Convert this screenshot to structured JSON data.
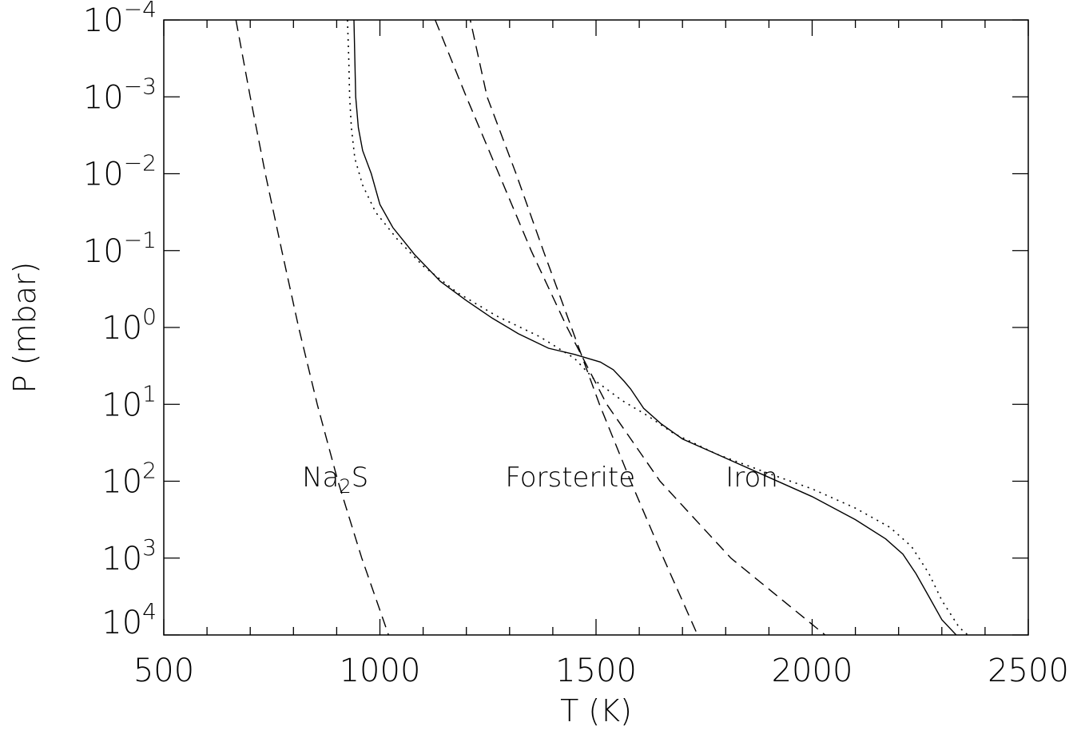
{
  "chart_data": {
    "type": "line",
    "xlabel": "T (K)",
    "ylabel": "P (mbar)",
    "xlim": [
      500,
      2500
    ],
    "ylim_log10": [
      -4,
      4
    ],
    "y_scale": "log",
    "y_inverted": true,
    "grid": false,
    "x_ticks": [
      {
        "value": 500,
        "label": "500"
      },
      {
        "value": 1000,
        "label": "1000"
      },
      {
        "value": 1500,
        "label": "1500"
      },
      {
        "value": 2000,
        "label": "2000"
      },
      {
        "value": 2500,
        "label": "2500"
      }
    ],
    "y_ticks": [
      {
        "exp": -4,
        "base": "10",
        "sup": "−4"
      },
      {
        "exp": -3,
        "base": "10",
        "sup": "−3"
      },
      {
        "exp": -2,
        "base": "10",
        "sup": "−2"
      },
      {
        "exp": -1,
        "base": "10",
        "sup": "−1"
      },
      {
        "exp": 0,
        "base": "10",
        "sup": "0"
      },
      {
        "exp": 1,
        "base": "10",
        "sup": "1"
      },
      {
        "exp": 2,
        "base": "10",
        "sup": "2"
      },
      {
        "exp": 3,
        "base": "10",
        "sup": "3"
      },
      {
        "exp": 4,
        "base": "10",
        "sup": "4"
      }
    ],
    "annotations": [
      {
        "id": "na2s",
        "base": "Na",
        "sub": "2",
        "tail": "S",
        "x": 820,
        "logP": 1.9
      },
      {
        "id": "forsterite",
        "text": "Forsterite",
        "x": 1290,
        "logP": 1.9
      },
      {
        "id": "iron",
        "text": "Iron",
        "x": 1800,
        "logP": 1.9
      }
    ],
    "series": [
      {
        "style": "solid",
        "points": [
          [
            940,
            -4
          ],
          [
            942,
            -3.5
          ],
          [
            944,
            -3
          ],
          [
            950,
            -2.6
          ],
          [
            960,
            -2.3
          ],
          [
            980,
            -2
          ],
          [
            1000,
            -1.6
          ],
          [
            1030,
            -1.3
          ],
          [
            1080,
            -0.95
          ],
          [
            1140,
            -0.6
          ],
          [
            1200,
            -0.35
          ],
          [
            1260,
            -0.12
          ],
          [
            1320,
            0.08
          ],
          [
            1390,
            0.27
          ],
          [
            1450,
            0.35
          ],
          [
            1510,
            0.45
          ],
          [
            1540,
            0.55
          ],
          [
            1565,
            0.7
          ],
          [
            1580,
            0.8
          ],
          [
            1610,
            1.05
          ],
          [
            1650,
            1.25
          ],
          [
            1700,
            1.45
          ],
          [
            1800,
            1.7
          ],
          [
            1900,
            1.95
          ],
          [
            2000,
            2.2
          ],
          [
            2100,
            2.5
          ],
          [
            2170,
            2.75
          ],
          [
            2210,
            2.95
          ],
          [
            2240,
            3.2
          ],
          [
            2270,
            3.5
          ],
          [
            2300,
            3.8
          ],
          [
            2350,
            4.1
          ],
          [
            2420,
            4.4
          ]
        ]
      },
      {
        "style": "dotted",
        "points": [
          [
            925,
            -4
          ],
          [
            928,
            -3.5
          ],
          [
            930,
            -3
          ],
          [
            934,
            -2.6
          ],
          [
            942,
            -2.2
          ],
          [
            960,
            -1.85
          ],
          [
            990,
            -1.5
          ],
          [
            1040,
            -1.15
          ],
          [
            1100,
            -0.8
          ],
          [
            1180,
            -0.45
          ],
          [
            1270,
            -0.15
          ],
          [
            1370,
            0.12
          ],
          [
            1450,
            0.4
          ],
          [
            1500,
            0.7
          ],
          [
            1560,
            0.95
          ],
          [
            1620,
            1.15
          ],
          [
            1680,
            1.38
          ],
          [
            1780,
            1.65
          ],
          [
            1900,
            1.9
          ],
          [
            2000,
            2.1
          ],
          [
            2100,
            2.35
          ],
          [
            2180,
            2.6
          ],
          [
            2230,
            2.85
          ],
          [
            2270,
            3.2
          ],
          [
            2300,
            3.55
          ],
          [
            2340,
            3.9
          ],
          [
            2400,
            4.2
          ],
          [
            2480,
            4.4
          ]
        ]
      },
      {
        "style": "dashed",
        "points": [
          [
            667,
            -4
          ],
          [
            700,
            -3
          ],
          [
            735,
            -2
          ],
          [
            773,
            -1
          ],
          [
            812,
            0
          ],
          [
            855,
            1
          ],
          [
            903,
            2
          ],
          [
            958,
            3
          ],
          [
            1020,
            4
          ],
          [
            1090,
            5
          ]
        ]
      },
      {
        "style": "dashed",
        "points": [
          [
            1170,
            -5
          ],
          [
            1248,
            -3
          ],
          [
            1315,
            -2
          ],
          [
            1378,
            -1
          ],
          [
            1443,
            0
          ],
          [
            1508,
            1
          ],
          [
            1580,
            2
          ],
          [
            1656,
            3
          ],
          [
            1735,
            4
          ],
          [
            1830,
            5
          ]
        ]
      },
      {
        "style": "dashed",
        "points": [
          [
            1128,
            -4
          ],
          [
            1200,
            -3
          ],
          [
            1275,
            -2
          ],
          [
            1350,
            -1
          ],
          [
            1433,
            0
          ],
          [
            1525,
            1
          ],
          [
            1648,
            2
          ],
          [
            1812,
            3
          ],
          [
            2030,
            4
          ]
        ]
      }
    ]
  }
}
